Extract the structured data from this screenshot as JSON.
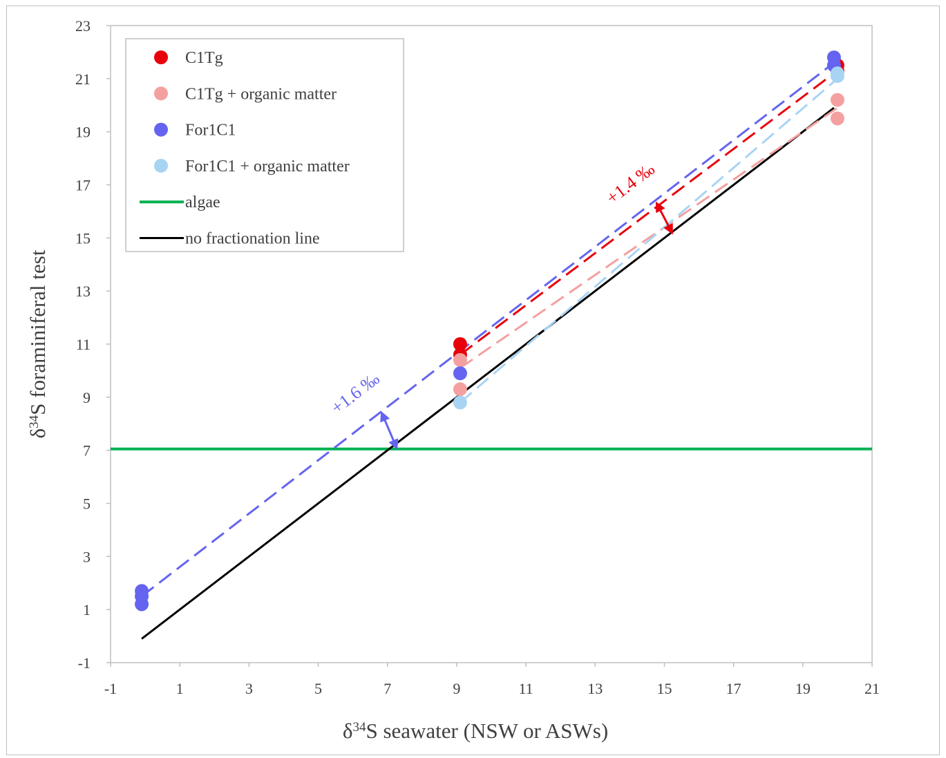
{
  "chart_data": {
    "type": "scatter",
    "xlabel": "δ34S seawater (NSW or ASWs)",
    "ylabel": "δ34S foraminiferal test",
    "xlim": [
      -1,
      21
    ],
    "ylim": [
      -1,
      23
    ],
    "x_ticks": [
      "-1",
      "1",
      "3",
      "5",
      "7",
      "9",
      "11",
      "13",
      "15",
      "17",
      "19",
      "21"
    ],
    "y_ticks": [
      "-1",
      "1",
      "3",
      "5",
      "7",
      "9",
      "11",
      "13",
      "15",
      "17",
      "19",
      "21",
      "23"
    ],
    "grid": false,
    "legend_position": "top-left",
    "series": [
      {
        "name": "C1Tg",
        "color": "#e8000b",
        "points": [
          [
            9.1,
            11.0
          ],
          [
            9.1,
            10.6
          ],
          [
            20.0,
            21.5
          ],
          [
            20.0,
            21.3
          ]
        ],
        "trend": [
          [
            9.1,
            10.6
          ],
          [
            20.0,
            21.3
          ]
        ]
      },
      {
        "name": "C1Tg + organic matter",
        "color": "#f4a0a0",
        "points": [
          [
            9.1,
            10.4
          ],
          [
            9.1,
            9.3
          ],
          [
            20.0,
            20.2
          ],
          [
            20.0,
            19.5
          ]
        ],
        "trend": [
          [
            9.1,
            10.1
          ],
          [
            20.0,
            19.9
          ]
        ]
      },
      {
        "name": "For1C1",
        "color": "#6464f0",
        "points": [
          [
            -0.1,
            1.7
          ],
          [
            -0.1,
            1.5
          ],
          [
            -0.1,
            1.2
          ],
          [
            9.1,
            9.9
          ],
          [
            19.9,
            21.8
          ],
          [
            19.9,
            21.5
          ]
        ],
        "trend": [
          [
            -0.1,
            1.5
          ],
          [
            19.9,
            21.6
          ]
        ]
      },
      {
        "name": "For1C1 + organic matter",
        "color": "#a8d4f4",
        "points": [
          [
            9.1,
            8.8
          ],
          [
            20.0,
            21.2
          ],
          [
            20.0,
            21.1
          ]
        ],
        "trend": [
          [
            9.1,
            8.8
          ],
          [
            20.0,
            21.0
          ]
        ]
      }
    ],
    "reference_lines": [
      {
        "name": "algae",
        "color": "#00b050",
        "type": "horizontal",
        "y": 7.05
      },
      {
        "name": "no fractionation line",
        "color": "#000000",
        "type": "identity",
        "from": [
          -0.1,
          -0.1
        ],
        "to": [
          19.9,
          19.9
        ]
      }
    ],
    "annotations": [
      {
        "text": "+1.6 ‰",
        "color": "#6464f0",
        "arrow": [
          [
            7.05,
            8.3
          ],
          [
            7.05,
            7.2
          ]
        ]
      },
      {
        "text": "+1.4 ‰",
        "color": "#e8000b",
        "arrow": [
          [
            15.0,
            16.2
          ],
          [
            15.0,
            15.3
          ]
        ]
      }
    ]
  }
}
